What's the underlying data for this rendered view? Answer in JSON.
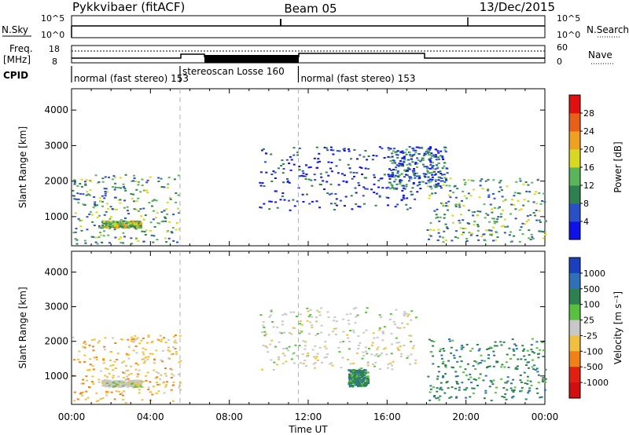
{
  "header": {
    "station": "Pykkvibaer (fitACF)",
    "beam": "Beam 05",
    "date": "13/Dec/2015"
  },
  "status_panel": {
    "nsky_label": "N.Sky",
    "nsky_ticks": [
      "10^5",
      "10^0"
    ],
    "nsearch_label": "N.Search",
    "nsearch_ticks": [
      "10^5",
      "10^0"
    ],
    "freq_label": "Freq.",
    "freq_unit": "[MHz]",
    "freq_ticks": [
      "18",
      "8"
    ],
    "nave_label": "Nave",
    "nave_ticks": [
      "60",
      "0"
    ],
    "cpid_label": "CPID"
  },
  "cpid_segments": [
    {
      "label": "normal (fast stereo) 153",
      "start_hour": 0.0,
      "end_hour": 5.5
    },
    {
      "label": "stereoscan Losse 160",
      "start_hour": 5.5,
      "end_hour": 11.5
    },
    {
      "label": "normal (fast stereo) 153",
      "start_hour": 11.5,
      "end_hour": 24.0
    }
  ],
  "chart_data": [
    {
      "type": "heatmap",
      "name": "power",
      "xlabel": "Time UT",
      "ylabel": "Slant Range [km]",
      "xlim": [
        0,
        24
      ],
      "ylim": [
        180,
        4600
      ],
      "x_ticks": [
        "00:00",
        "04:00",
        "08:00",
        "12:00",
        "16:00",
        "20:00",
        "00:00"
      ],
      "y_ticks": [
        1000,
        2000,
        3000,
        4000
      ],
      "colorbar": {
        "label": "Power [dB]",
        "ticks": [
          4,
          8,
          12,
          16,
          20,
          24,
          28
        ],
        "colors": [
          "#1010e8",
          "#2a50c8",
          "#2e8050",
          "#5ab45a",
          "#d8d820",
          "#f0a020",
          "#e86018",
          "#e01010"
        ]
      },
      "echo_regions": [
        {
          "label": "near-range echoes",
          "start_hour": 0.0,
          "end_hour": 5.5,
          "range_km": [
            250,
            2200
          ],
          "power_db": 14
        },
        {
          "label": "band at ~800 km",
          "start_hour": 1.5,
          "end_hour": 3.5,
          "range_km": [
            700,
            900
          ],
          "power_db": 18
        },
        {
          "label": "arc echoes",
          "start_hour": 9.5,
          "end_hour": 17.5,
          "range_km": [
            1200,
            3000
          ],
          "power_db": 8
        },
        {
          "label": "rising arc",
          "start_hour": 16.0,
          "end_hour": 19.0,
          "range_km": [
            1800,
            3000
          ],
          "power_db": 10
        },
        {
          "label": "late echoes",
          "start_hour": 18.0,
          "end_hour": 24.0,
          "range_km": [
            300,
            2100
          ],
          "power_db": 16
        }
      ]
    },
    {
      "type": "heatmap",
      "name": "velocity",
      "xlabel": "Time UT",
      "ylabel": "Slant Range [km]",
      "xlim": [
        0,
        24
      ],
      "ylim": [
        180,
        4600
      ],
      "x_ticks": [
        "00:00",
        "04:00",
        "08:00",
        "12:00",
        "16:00",
        "20:00",
        "00:00"
      ],
      "y_ticks": [
        1000,
        2000,
        3000,
        4000
      ],
      "colorbar": {
        "label": "Velocity [m s⁻¹]",
        "ticks": [
          1000,
          500,
          100,
          25,
          -25,
          -100,
          -500,
          -1000
        ],
        "colors": [
          "#1a40c0",
          "#2f70b8",
          "#2e8050",
          "#58c040",
          "#c8c8c8",
          "#f0c040",
          "#f08018",
          "#e02010",
          "#d01010"
        ]
      },
      "echo_regions": [
        {
          "label": "near-range echoes",
          "start_hour": 0.0,
          "end_hour": 5.5,
          "range_km": [
            250,
            2200
          ],
          "velocity": -100
        },
        {
          "label": "ground scatter band",
          "start_hour": 1.5,
          "end_hour": 3.5,
          "range_km": [
            700,
            900
          ],
          "velocity": 0
        },
        {
          "label": "arc echoes",
          "start_hour": 9.5,
          "end_hour": 17.5,
          "range_km": [
            1200,
            3000
          ],
          "velocity": 0
        },
        {
          "label": "green patch",
          "start_hour": 14.0,
          "end_hour": 15.0,
          "range_km": [
            700,
            1200
          ],
          "velocity": 100
        },
        {
          "label": "late echoes",
          "start_hour": 18.0,
          "end_hour": 24.0,
          "range_km": [
            300,
            2100
          ],
          "velocity": 100
        }
      ]
    }
  ]
}
